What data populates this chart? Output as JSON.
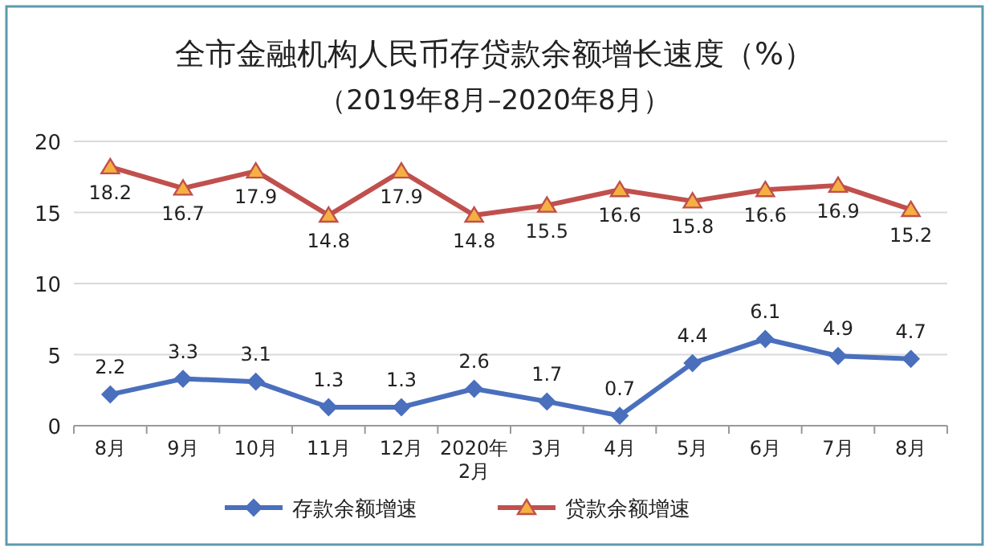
{
  "chart_data": {
    "type": "line",
    "title": "全市金融机构人民币存贷款余额增长速度（%）",
    "subtitle": "（2019年8月–2020年8月）",
    "categories": [
      "8月",
      "9月",
      "10月",
      "11月",
      "12月",
      "2020年\n2月",
      "3月",
      "4月",
      "5月",
      "6月",
      "7月",
      "8月"
    ],
    "series": [
      {
        "name": "存款余额增速",
        "color": "#4a6fbd",
        "marker": "diamond",
        "values": [
          2.2,
          3.3,
          3.1,
          1.3,
          1.3,
          2.6,
          1.7,
          0.7,
          4.4,
          6.1,
          4.9,
          4.7
        ]
      },
      {
        "name": "贷款余额增速",
        "color": "#c0504d",
        "marker": "triangle",
        "values": [
          18.2,
          16.7,
          17.9,
          14.8,
          17.9,
          14.8,
          15.5,
          16.6,
          15.8,
          16.6,
          16.9,
          15.2
        ]
      }
    ],
    "ylim": [
      0,
      20
    ],
    "yticks": [
      0,
      5,
      10,
      15,
      20
    ],
    "grid": "y",
    "legend": "bottom",
    "data_labels": true,
    "line_style": "solid"
  }
}
